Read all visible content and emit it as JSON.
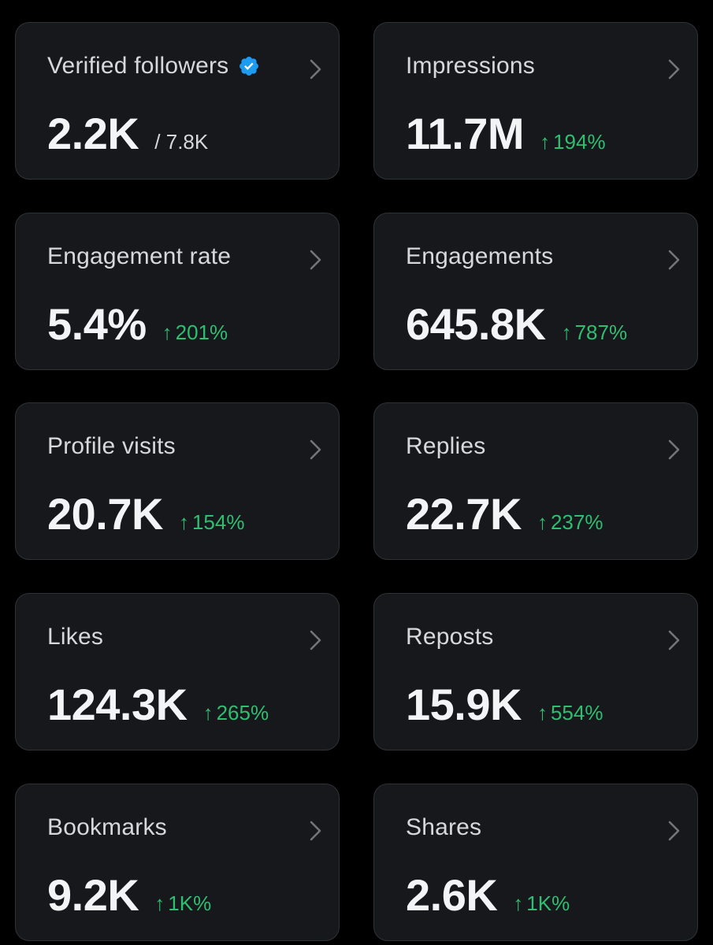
{
  "colors": {
    "background": "#000000",
    "card_bg": "#17181c",
    "card_border": "#2f3336",
    "text_primary": "#f3f4f5",
    "text_secondary": "#d6d9db",
    "positive": "#2fbf71",
    "verified_blue": "#1d9bf0"
  },
  "cards": {
    "verified_followers": {
      "title": "Verified followers",
      "value": "2.2K",
      "total": "/ 7.8K",
      "icon": "verified-badge-icon"
    },
    "impressions": {
      "title": "Impressions",
      "value": "11.7M",
      "arrow": "↑",
      "change": "194%"
    },
    "engagement_rate": {
      "title": "Engagement rate",
      "value": "5.4%",
      "arrow": "↑",
      "change": "201%"
    },
    "engagements": {
      "title": "Engagements",
      "value": "645.8K",
      "arrow": "↑",
      "change": "787%"
    },
    "profile_visits": {
      "title": "Profile visits",
      "value": "20.7K",
      "arrow": "↑",
      "change": "154%"
    },
    "replies": {
      "title": "Replies",
      "value": "22.7K",
      "arrow": "↑",
      "change": "237%"
    },
    "likes": {
      "title": "Likes",
      "value": "124.3K",
      "arrow": "↑",
      "change": "265%"
    },
    "reposts": {
      "title": "Reposts",
      "value": "15.9K",
      "arrow": "↑",
      "change": "554%"
    },
    "bookmarks": {
      "title": "Bookmarks",
      "value": "9.2K",
      "arrow": "↑",
      "change": "1K%"
    },
    "shares": {
      "title": "Shares",
      "value": "2.6K",
      "arrow": "↑",
      "change": "1K%"
    }
  }
}
